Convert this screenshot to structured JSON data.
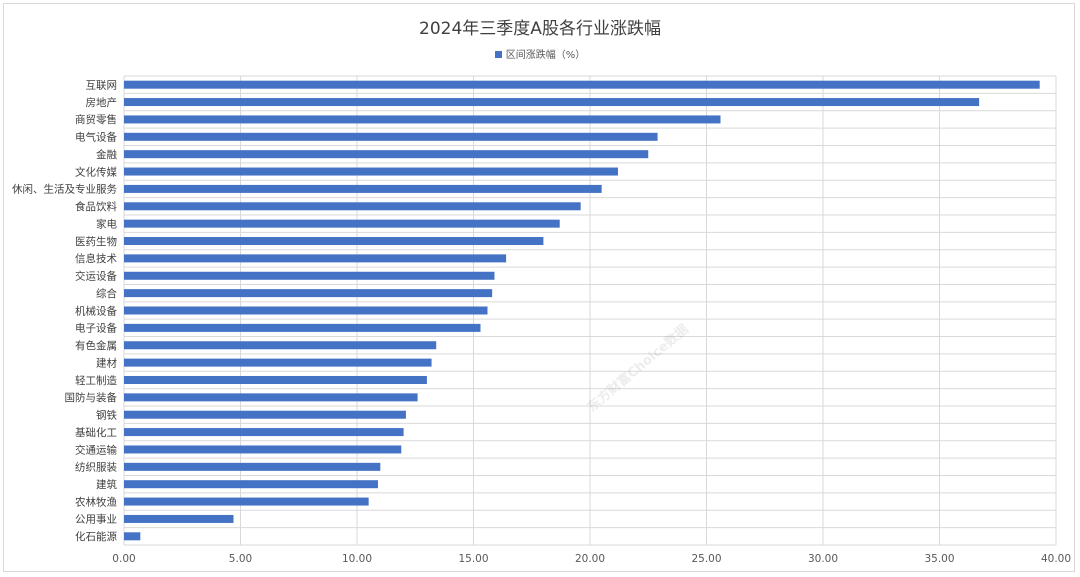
{
  "chart_data": {
    "type": "bar",
    "orientation": "horizontal",
    "title": "2024年三季度A股各行业涨跌幅",
    "legend": [
      {
        "name": "区间涨跌幅（%）",
        "color": "#4472c4"
      }
    ],
    "legend_position": "top",
    "categories": [
      "互联网",
      "房地产",
      "商贸零售",
      "电气设备",
      "金融",
      "文化传媒",
      "休闲、生活及专业服务",
      "食品饮料",
      "家电",
      "医药生物",
      "信息技术",
      "交运设备",
      "综合",
      "机械设备",
      "电子设备",
      "有色金属",
      "建材",
      "轻工制造",
      "国防与装备",
      "钢铁",
      "基础化工",
      "交通运输",
      "纺织服装",
      "建筑",
      "农林牧渔",
      "公用事业",
      "化石能源"
    ],
    "series": [
      {
        "name": "区间涨跌幅（%）",
        "color": "#4472c4",
        "values": [
          39.3,
          36.7,
          25.6,
          22.9,
          22.5,
          21.2,
          20.5,
          19.6,
          18.7,
          18.0,
          16.4,
          15.9,
          15.8,
          15.6,
          15.3,
          13.4,
          13.2,
          13.0,
          12.6,
          12.1,
          12.0,
          11.9,
          11.0,
          10.9,
          10.5,
          4.7,
          0.7
        ]
      }
    ],
    "xlim": [
      0,
      40
    ],
    "x_ticks": [
      "0.00",
      "5.00",
      "10.00",
      "15.00",
      "20.00",
      "25.00",
      "30.00",
      "35.00",
      "40.00"
    ],
    "grid": true,
    "watermark": "东方财富Choice数据"
  }
}
